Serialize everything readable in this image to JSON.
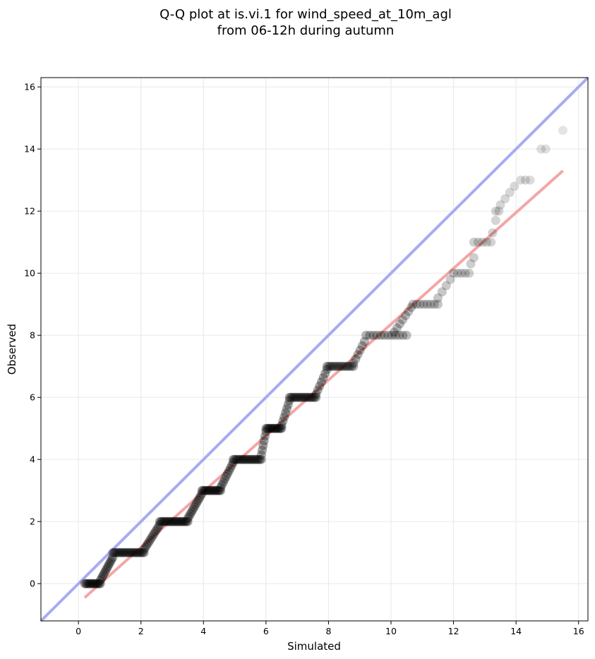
{
  "chart_data": {
    "type": "scatter",
    "title_lines": [
      "Q-Q plot at is.vi.1 for wind_speed_at_10m_agl",
      "from 06-12h during autumn"
    ],
    "xlabel": "Simulated",
    "ylabel": "Observed",
    "xlim": [
      -1.2,
      16.3
    ],
    "ylim": [
      -1.2,
      16.3
    ],
    "xticks": [
      0,
      2,
      4,
      6,
      8,
      10,
      12,
      14,
      16
    ],
    "yticks": [
      0,
      2,
      4,
      6,
      8,
      10,
      12,
      14,
      16
    ],
    "grid": true,
    "legend": "none",
    "colors": {
      "points": "#000000",
      "identity_line": "#a9aaf3",
      "fit_line": "#f4a6a6",
      "grid": "#ebebeb"
    },
    "identity_line": {
      "x": [
        -1.2,
        16.3
      ],
      "y": [
        -1.2,
        16.3
      ]
    },
    "fit_line": {
      "x": [
        0.2,
        15.5
      ],
      "y": [
        -0.45,
        13.3
      ]
    },
    "point_groups": [
      {
        "x_start": 0.2,
        "x_end": 0.7,
        "y": 0,
        "count": 14
      },
      {
        "x_start": 0.7,
        "x_end": 1.1,
        "y_start": 0.1,
        "y_end": 0.85,
        "count": 12
      },
      {
        "x_start": 1.1,
        "x_end": 2.1,
        "y": 1,
        "count": 22
      },
      {
        "x_start": 2.1,
        "x_end": 2.6,
        "y_start": 1.1,
        "y_end": 1.9,
        "count": 12
      },
      {
        "x_start": 2.6,
        "x_end": 3.5,
        "y": 2,
        "count": 22
      },
      {
        "x_start": 3.5,
        "x_end": 3.95,
        "y_start": 2.1,
        "y_end": 2.9,
        "count": 12
      },
      {
        "x_start": 3.95,
        "x_end": 4.55,
        "y": 3,
        "count": 16
      },
      {
        "x_start": 4.55,
        "x_end": 4.95,
        "y_start": 3.1,
        "y_end": 3.9,
        "count": 10
      },
      {
        "x_start": 4.95,
        "x_end": 5.85,
        "y": 4,
        "count": 20
      },
      {
        "x_start": 5.85,
        "x_end": 6.0,
        "y_start": 4.15,
        "y_end": 4.9,
        "count": 6
      },
      {
        "x_start": 6.0,
        "x_end": 6.5,
        "y": 5,
        "count": 14
      },
      {
        "x_start": 6.5,
        "x_end": 6.75,
        "y_start": 5.1,
        "y_end": 5.9,
        "count": 7
      },
      {
        "x_start": 6.75,
        "x_end": 7.6,
        "y": 6,
        "count": 18
      },
      {
        "x_start": 7.6,
        "x_end": 7.95,
        "y_start": 6.1,
        "y_end": 6.9,
        "count": 7
      },
      {
        "x_start": 7.95,
        "x_end": 8.8,
        "y": 7,
        "count": 14
      },
      {
        "x_start": 8.8,
        "x_end": 9.15,
        "y_start": 7.1,
        "y_end": 7.8,
        "count": 6
      },
      {
        "x_start": 9.2,
        "x_end": 10.5,
        "y": 8,
        "count": 12
      },
      {
        "x_start": 10.1,
        "x_end": 10.65,
        "y_start": 8.1,
        "y_end": 8.9,
        "count": 7
      },
      {
        "x_start": 10.7,
        "x_end": 11.5,
        "y": 9,
        "count": 8
      },
      {
        "x_start": 11.5,
        "x_end": 11.9,
        "y_start": 9.2,
        "y_end": 9.8,
        "count": 4
      },
      {
        "x_start": 12.0,
        "x_end": 12.5,
        "y": 10,
        "count": 5
      },
      {
        "x_start": 12.55,
        "x_end": 12.65,
        "y_start": 10.3,
        "y_end": 10.5,
        "count": 2
      },
      {
        "x_start": 12.65,
        "x_end": 13.2,
        "y": 11,
        "count": 5
      },
      {
        "x_start": 13.25,
        "x_end": 13.35,
        "y_start": 11.3,
        "y_end": 11.7,
        "count": 2
      },
      {
        "x_start": 13.35,
        "x_end": 13.45,
        "y": 12,
        "count": 2
      },
      {
        "x_start": 13.5,
        "x_end": 13.95,
        "y_start": 12.2,
        "y_end": 12.8,
        "count": 4
      },
      {
        "x_start": 14.15,
        "x_end": 14.45,
        "y": 13,
        "count": 3
      },
      {
        "x_start": 14.8,
        "x_end": 14.95,
        "y": 14,
        "count": 2
      },
      {
        "x_start": 15.5,
        "x_end": 15.5,
        "y": 14.6,
        "count": 1
      }
    ]
  }
}
